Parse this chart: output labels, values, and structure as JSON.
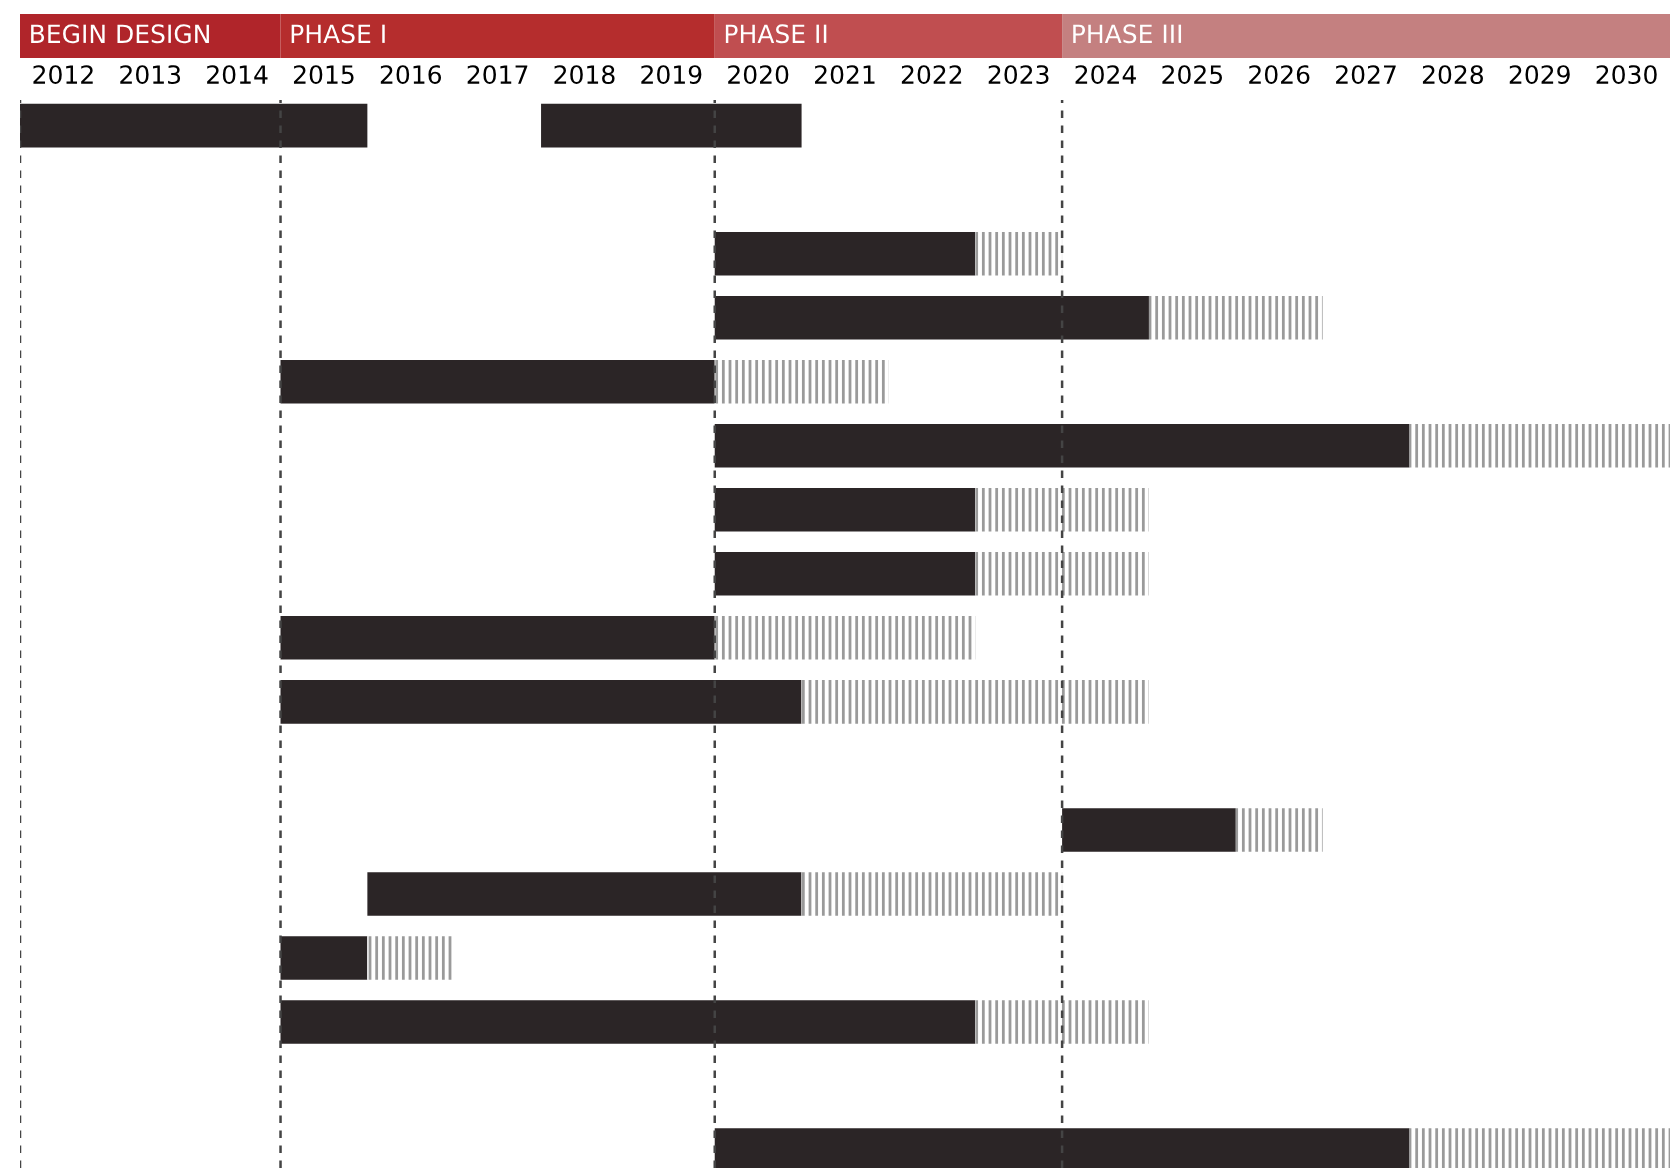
{
  "chart_data": {
    "type": "bar",
    "orientation": "horizontal",
    "categories": [
      null,
      null,
      null,
      null,
      null,
      null,
      null,
      null,
      null,
      null,
      null,
      null,
      null,
      null,
      null,
      null,
      null
    ],
    "series": [
      {
        "color": "#2b2526",
        "base": [
          2012,
          null,
          2020,
          2020,
          2015,
          2020,
          2020,
          2020,
          2015,
          2015,
          null,
          2024,
          2016,
          2015,
          2015,
          null,
          2020
        ],
        "values": [
          4,
          null,
          3,
          5,
          5,
          8,
          3,
          3,
          5,
          6,
          null,
          2,
          5,
          1,
          8,
          null,
          8
        ]
      },
      {
        "color": "#2b2526",
        "base": [
          2018,
          null,
          null,
          null,
          null,
          null,
          null,
          null,
          null,
          null,
          null,
          null,
          null,
          null,
          null,
          null,
          null
        ],
        "values": [
          3,
          null,
          null,
          null,
          null,
          null,
          null,
          null,
          null,
          null,
          null,
          null,
          null,
          null,
          null,
          null,
          null
        ]
      },
      {
        "color": "#9a9a9a",
        "base": [
          null,
          null,
          2023,
          2025,
          2020,
          2028,
          2023,
          2023,
          2020,
          2021,
          null,
          2026,
          2021,
          2016,
          2023,
          null,
          2028
        ],
        "values": [
          null,
          null,
          1,
          2,
          2,
          3,
          2,
          2,
          3,
          4,
          null,
          1,
          3,
          1,
          2,
          null,
          3
        ]
      }
    ],
    "xlim": [
      2012,
      2031
    ],
    "xticks": [
      {
        "value": 2012.5,
        "label": "2012"
      },
      {
        "value": 2013.5,
        "label": "2013"
      },
      {
        "value": 2014.5,
        "label": "2014"
      },
      {
        "value": 2015.5,
        "label": "2015"
      },
      {
        "value": 2016.5,
        "label": "2016"
      },
      {
        "value": 2017.5,
        "label": "2017"
      },
      {
        "value": 2018.5,
        "label": "2018"
      },
      {
        "value": 2019.5,
        "label": "2019"
      },
      {
        "value": 2020.5,
        "label": "2020"
      },
      {
        "value": 2021.5,
        "label": "2021"
      },
      {
        "value": 2022.5,
        "label": "2022"
      },
      {
        "value": 2023.5,
        "label": "2023"
      },
      {
        "value": 2024.5,
        "label": "2024"
      },
      {
        "value": 2025.5,
        "label": "2025"
      },
      {
        "value": 2026.5,
        "label": "2026"
      },
      {
        "value": 2027.5,
        "label": "2027"
      },
      {
        "value": 2028.5,
        "label": "2028"
      },
      {
        "value": 2029.5,
        "label": "2029"
      },
      {
        "value": 2030.5,
        "label": "2030"
      }
    ],
    "ref_lines": [
      {
        "axis": "x",
        "value": 2012,
        "label": "BEGIN DESIGN",
        "line_style": "dashed",
        "color": "#444444"
      },
      {
        "axis": "x",
        "value": 2015,
        "label": "PHASE I",
        "line_style": "dashed",
        "color": "#444444"
      },
      {
        "axis": "x",
        "value": 2020,
        "label": "PHASE II",
        "line_style": "dashed",
        "color": "#444444"
      },
      {
        "axis": "x",
        "value": 2024,
        "label": "PHASE III",
        "line_style": "dashed",
        "color": "#444444"
      }
    ],
    "grid": false,
    "legend": false
  }
}
